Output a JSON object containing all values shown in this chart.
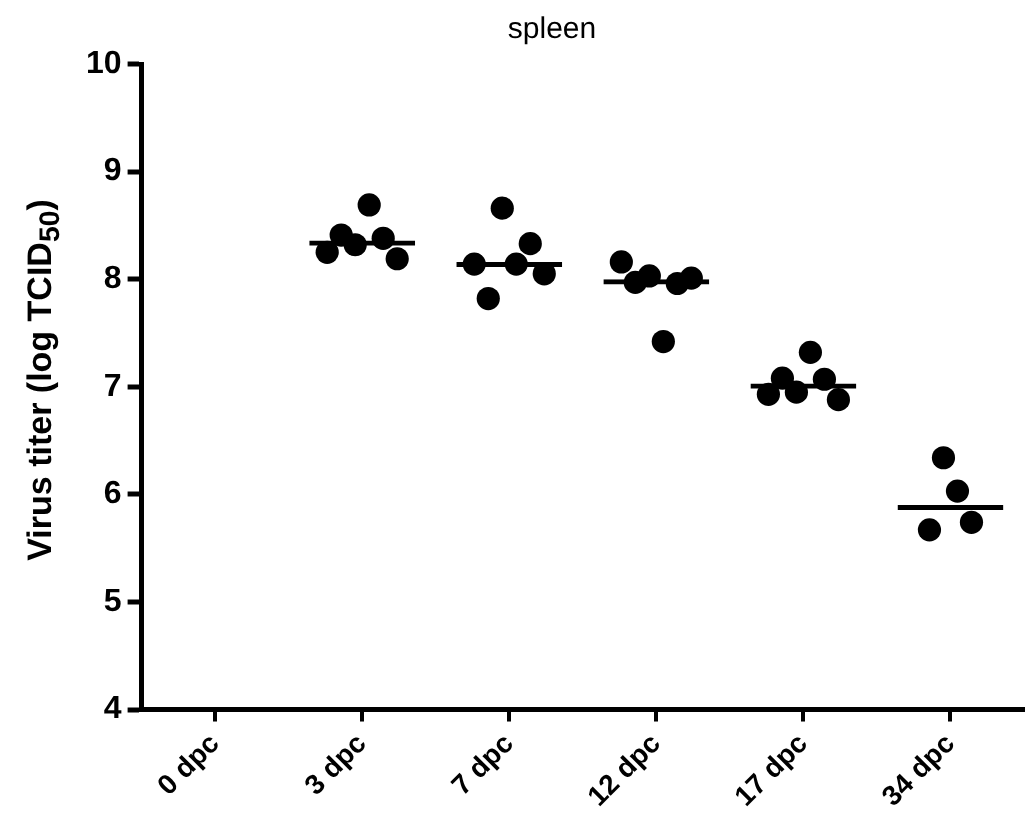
{
  "chart_data": {
    "type": "scatter",
    "title": "spleen",
    "ylabel": "Virus titer (log TCID$_{50}$)",
    "categories": [
      "0 dpc",
      "3 dpc",
      "7 dpc",
      "12 dpc",
      "17 dpc",
      "34 dpc"
    ],
    "series": [
      {
        "marker": "circle",
        "color": "#000000",
        "x": [
          "3 dpc",
          "3 dpc",
          "3 dpc",
          "3 dpc",
          "3 dpc",
          "3 dpc",
          "7 dpc",
          "7 dpc",
          "7 dpc",
          "7 dpc",
          "7 dpc",
          "7 dpc",
          "12 dpc",
          "12 dpc",
          "12 dpc",
          "12 dpc",
          "12 dpc",
          "12 dpc",
          "17 dpc",
          "17 dpc",
          "17 dpc",
          "17 dpc",
          "17 dpc",
          "17 dpc",
          "34 dpc",
          "34 dpc",
          "34 dpc",
          "34 dpc"
        ],
        "values": [
          8.25,
          8.41,
          8.32,
          8.69,
          8.38,
          8.19,
          8.14,
          7.82,
          8.66,
          8.14,
          8.33,
          8.05,
          8.16,
          7.97,
          8.03,
          7.42,
          7.96,
          8.01,
          6.93,
          7.08,
          6.95,
          7.32,
          7.07,
          6.88,
          5.67,
          6.34,
          6.03,
          5.74
        ]
      },
      {
        "type": "bar",
        "color": "#000000",
        "values": [
          null,
          8.36,
          8.16,
          8.0,
          7.03,
          5.9
        ]
      }
    ],
    "ylim": [
      4,
      10
    ],
    "yticks": [
      4,
      5,
      6,
      7,
      8,
      9,
      10
    ],
    "grid": false,
    "legend": false
  }
}
